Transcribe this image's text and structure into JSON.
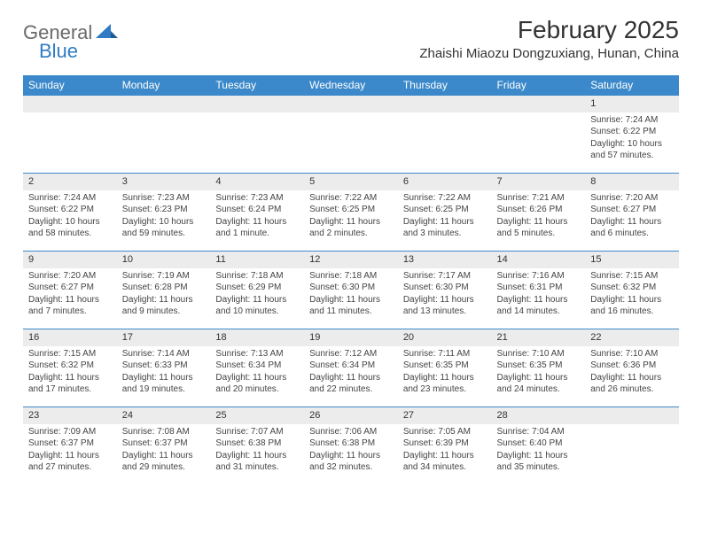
{
  "logo": {
    "part1": "General",
    "part2": "Blue"
  },
  "title": "February 2025",
  "location": "Zhaishi Miaozu Dongzuxiang, Hunan, China",
  "colors": {
    "header_bg": "#3b89ca",
    "header_text": "#ffffff",
    "daynum_bg": "#ececec",
    "accent_blue": "#2f7bc4",
    "logo_gray": "#6a6a6a",
    "body_text": "#444444"
  },
  "weekdays": [
    "Sunday",
    "Monday",
    "Tuesday",
    "Wednesday",
    "Thursday",
    "Friday",
    "Saturday"
  ],
  "grid": [
    [
      null,
      null,
      null,
      null,
      null,
      null,
      {
        "n": "1",
        "sr": "7:24 AM",
        "ss": "6:22 PM",
        "dl": "10 hours and 57 minutes."
      }
    ],
    [
      {
        "n": "2",
        "sr": "7:24 AM",
        "ss": "6:22 PM",
        "dl": "10 hours and 58 minutes."
      },
      {
        "n": "3",
        "sr": "7:23 AM",
        "ss": "6:23 PM",
        "dl": "10 hours and 59 minutes."
      },
      {
        "n": "4",
        "sr": "7:23 AM",
        "ss": "6:24 PM",
        "dl": "11 hours and 1 minute."
      },
      {
        "n": "5",
        "sr": "7:22 AM",
        "ss": "6:25 PM",
        "dl": "11 hours and 2 minutes."
      },
      {
        "n": "6",
        "sr": "7:22 AM",
        "ss": "6:25 PM",
        "dl": "11 hours and 3 minutes."
      },
      {
        "n": "7",
        "sr": "7:21 AM",
        "ss": "6:26 PM",
        "dl": "11 hours and 5 minutes."
      },
      {
        "n": "8",
        "sr": "7:20 AM",
        "ss": "6:27 PM",
        "dl": "11 hours and 6 minutes."
      }
    ],
    [
      {
        "n": "9",
        "sr": "7:20 AM",
        "ss": "6:27 PM",
        "dl": "11 hours and 7 minutes."
      },
      {
        "n": "10",
        "sr": "7:19 AM",
        "ss": "6:28 PM",
        "dl": "11 hours and 9 minutes."
      },
      {
        "n": "11",
        "sr": "7:18 AM",
        "ss": "6:29 PM",
        "dl": "11 hours and 10 minutes."
      },
      {
        "n": "12",
        "sr": "7:18 AM",
        "ss": "6:30 PM",
        "dl": "11 hours and 11 minutes."
      },
      {
        "n": "13",
        "sr": "7:17 AM",
        "ss": "6:30 PM",
        "dl": "11 hours and 13 minutes."
      },
      {
        "n": "14",
        "sr": "7:16 AM",
        "ss": "6:31 PM",
        "dl": "11 hours and 14 minutes."
      },
      {
        "n": "15",
        "sr": "7:15 AM",
        "ss": "6:32 PM",
        "dl": "11 hours and 16 minutes."
      }
    ],
    [
      {
        "n": "16",
        "sr": "7:15 AM",
        "ss": "6:32 PM",
        "dl": "11 hours and 17 minutes."
      },
      {
        "n": "17",
        "sr": "7:14 AM",
        "ss": "6:33 PM",
        "dl": "11 hours and 19 minutes."
      },
      {
        "n": "18",
        "sr": "7:13 AM",
        "ss": "6:34 PM",
        "dl": "11 hours and 20 minutes."
      },
      {
        "n": "19",
        "sr": "7:12 AM",
        "ss": "6:34 PM",
        "dl": "11 hours and 22 minutes."
      },
      {
        "n": "20",
        "sr": "7:11 AM",
        "ss": "6:35 PM",
        "dl": "11 hours and 23 minutes."
      },
      {
        "n": "21",
        "sr": "7:10 AM",
        "ss": "6:35 PM",
        "dl": "11 hours and 24 minutes."
      },
      {
        "n": "22",
        "sr": "7:10 AM",
        "ss": "6:36 PM",
        "dl": "11 hours and 26 minutes."
      }
    ],
    [
      {
        "n": "23",
        "sr": "7:09 AM",
        "ss": "6:37 PM",
        "dl": "11 hours and 27 minutes."
      },
      {
        "n": "24",
        "sr": "7:08 AM",
        "ss": "6:37 PM",
        "dl": "11 hours and 29 minutes."
      },
      {
        "n": "25",
        "sr": "7:07 AM",
        "ss": "6:38 PM",
        "dl": "11 hours and 31 minutes."
      },
      {
        "n": "26",
        "sr": "7:06 AM",
        "ss": "6:38 PM",
        "dl": "11 hours and 32 minutes."
      },
      {
        "n": "27",
        "sr": "7:05 AM",
        "ss": "6:39 PM",
        "dl": "11 hours and 34 minutes."
      },
      {
        "n": "28",
        "sr": "7:04 AM",
        "ss": "6:40 PM",
        "dl": "11 hours and 35 minutes."
      },
      null
    ]
  ],
  "labels": {
    "sunrise": "Sunrise:",
    "sunset": "Sunset:",
    "daylight": "Daylight:"
  }
}
